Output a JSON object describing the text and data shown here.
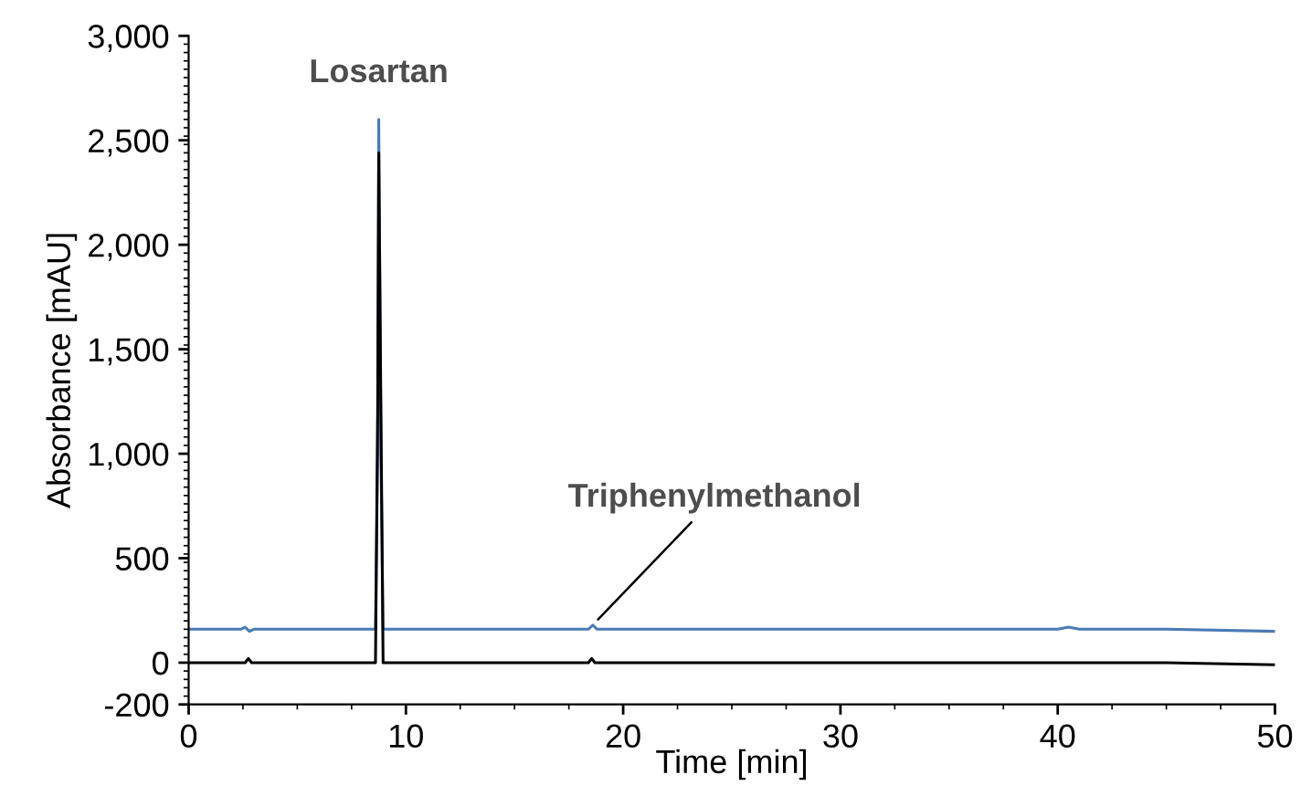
{
  "chart_data": {
    "type": "line",
    "xlabel": "Time [min]",
    "ylabel": "Absorbance [mAU]",
    "xlim": [
      0,
      50
    ],
    "xticks": [
      0,
      10,
      20,
      30,
      40,
      50
    ],
    "ylim": [
      -200,
      3000
    ],
    "yticks": [
      {
        "value": -200,
        "label": "-200"
      },
      0,
      500,
      {
        "value": 1000,
        "label": "1,000"
      },
      {
        "value": 1500,
        "label": "1,500"
      },
      {
        "value": 2000,
        "label": "2,000"
      },
      {
        "value": 2500,
        "label": "2,500"
      },
      {
        "value": 3000,
        "label": "3,000"
      }
    ],
    "grid": false,
    "legend": false,
    "marker": "none",
    "line_style": "solid",
    "series": [
      {
        "color": "#4a7ab5",
        "x": [
          0,
          2.4,
          2.6,
          2.8,
          3.0,
          8.6,
          8.7,
          8.75,
          8.85,
          8.95,
          18.4,
          18.6,
          18.8,
          31.5,
          40,
          40.5,
          41,
          45,
          50
        ],
        "values": [
          160,
          160,
          170,
          150,
          160,
          160,
          1000,
          2600,
          1000,
          160,
          160,
          180,
          160,
          160,
          160,
          170,
          160,
          160,
          150
        ]
      },
      {
        "color": "#000000",
        "x": [
          0,
          2.6,
          2.75,
          2.9,
          8.6,
          8.7,
          8.75,
          8.85,
          8.95,
          18.4,
          18.55,
          18.7,
          45,
          50
        ],
        "values": [
          0,
          0,
          20,
          0,
          0,
          1200,
          2440,
          1200,
          0,
          0,
          20,
          0,
          0,
          -10
        ]
      }
    ],
    "annotations": [
      {
        "text": "Losartan",
        "x": 8.75,
        "y": 2600
      },
      {
        "text": "Triphenylmethanol",
        "x": 18.6,
        "y": 180
      }
    ]
  }
}
